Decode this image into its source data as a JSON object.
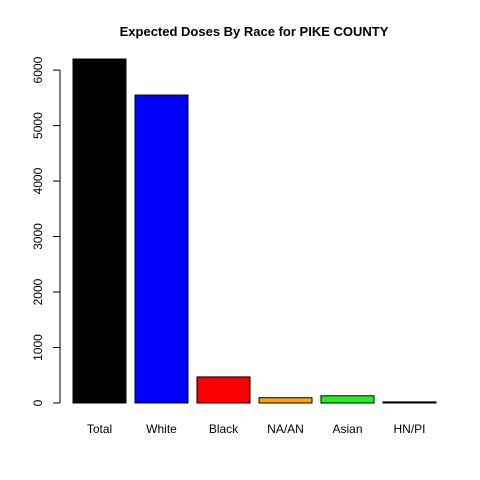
{
  "chart_data": {
    "type": "bar",
    "title": "Expected Doses By Race for PIKE COUNTY",
    "xlabel": "",
    "ylabel": "",
    "categories": [
      "Total",
      "White",
      "Black",
      "NA/AN",
      "Asian",
      "HN/PI"
    ],
    "values": [
      6200,
      5550,
      470,
      95,
      130,
      20
    ],
    "colors": [
      "#000000",
      "#0000ff",
      "#ff0000",
      "#ffa500",
      "#22ee22",
      "#000000"
    ],
    "ylim": [
      0,
      6200
    ],
    "yticks": [
      0,
      1000,
      2000,
      3000,
      4000,
      5000,
      6000
    ],
    "grid": false,
    "legend": "none"
  }
}
